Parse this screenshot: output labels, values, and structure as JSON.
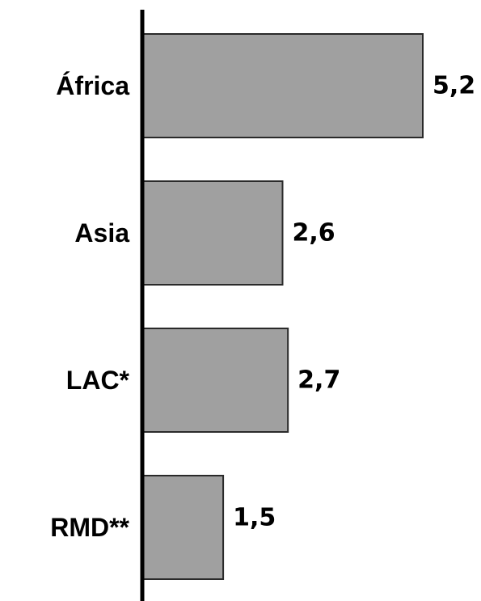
{
  "chart_data": {
    "type": "bar",
    "orientation": "horizontal",
    "categories": [
      "África",
      "Asia",
      "LAC*",
      "RMD**"
    ],
    "values": [
      5.2,
      2.6,
      2.7,
      1.5
    ],
    "value_labels": [
      "5,2",
      "2,6",
      "2,7",
      "1,5"
    ],
    "xlim": [
      0,
      5.2
    ],
    "grid": false,
    "colors": {
      "bar_fill": "#a0a0a0",
      "bar_stroke": "#2a2a2a",
      "axis": "#000000"
    }
  }
}
